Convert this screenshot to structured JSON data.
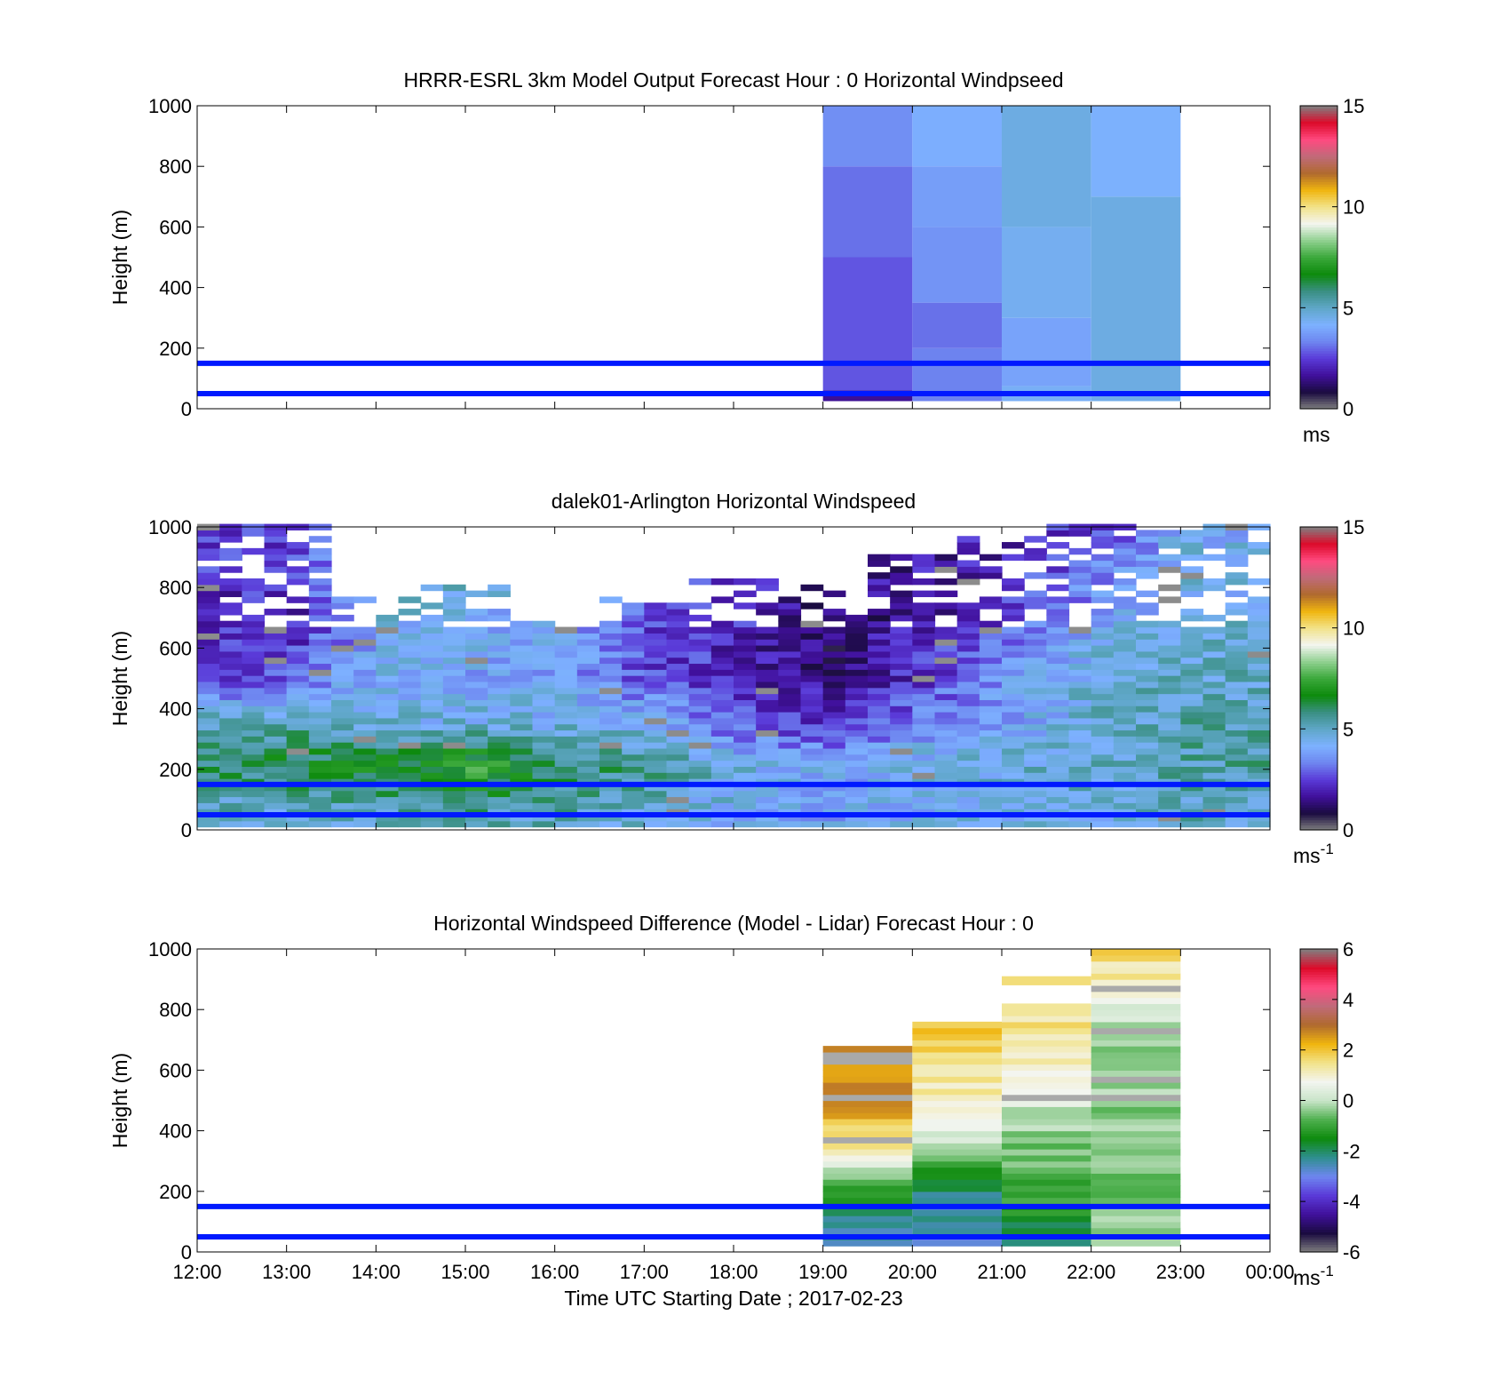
{
  "colors": {
    "ref_line": "#0019ff",
    "frame": "#000000",
    "speed_stops": [
      "#808080",
      "#1a0b40",
      "#40109b",
      "#5a3ad8",
      "#6e86f0",
      "#7db1ff",
      "#5fa7c8",
      "#3a8f83",
      "#0d8a0d",
      "#3aa83a",
      "#8fd08f",
      "#f3f5f0",
      "#f2e38a",
      "#f0b50f",
      "#b06a2e",
      "#c06a7a",
      "#ff4a80",
      "#dd0a2a",
      "#808080"
    ],
    "diff_stops": [
      "#808080",
      "#1a0b40",
      "#40109b",
      "#5a3ad8",
      "#6e86f0",
      "#2f8f8f",
      "#0d8a0d",
      "#4fb04f",
      "#c8e4c8",
      "#f3f5f0",
      "#f2e38a",
      "#f0b50f",
      "#b06a2e",
      "#c06a7a",
      "#ff4a80",
      "#dd0a2a",
      "#808080"
    ]
  },
  "chart_data": [
    {
      "type": "heatmap",
      "title": "HRRR-ESRL 3km Model Output   Forecast Hour : 0 Horizontal Windpseed",
      "ylabel": "Height (m)",
      "ylim": [
        0,
        1000
      ],
      "yticks": [
        "0",
        "200",
        "400",
        "600",
        "800",
        "1000"
      ],
      "xlim_hours": [
        12,
        24
      ],
      "show_xticklabels": false,
      "colorbar": {
        "min": 0,
        "max": 15,
        "ticks": [
          "0",
          "5",
          "10",
          "15"
        ],
        "unit": "ms",
        "unit_sup": ""
      },
      "reference_lines_m": [
        50,
        150
      ],
      "cells": [
        {
          "x0": 19,
          "x1": 20,
          "y0": 25,
          "y1": 60,
          "v": 1.6
        },
        {
          "x0": 19,
          "x1": 20,
          "y0": 60,
          "y1": 500,
          "v": 2.8
        },
        {
          "x0": 19,
          "x1": 20,
          "y0": 500,
          "y1": 800,
          "v": 3.1
        },
        {
          "x0": 19,
          "x1": 20,
          "y0": 800,
          "y1": 1000,
          "v": 3.5
        },
        {
          "x0": 20,
          "x1": 21,
          "y0": 25,
          "y1": 200,
          "v": 3.3
        },
        {
          "x0": 20,
          "x1": 21,
          "y0": 200,
          "y1": 350,
          "v": 3.1
        },
        {
          "x0": 20,
          "x1": 21,
          "y0": 350,
          "y1": 600,
          "v": 3.6
        },
        {
          "x0": 20,
          "x1": 21,
          "y0": 600,
          "y1": 800,
          "v": 3.8
        },
        {
          "x0": 20,
          "x1": 21,
          "y0": 800,
          "y1": 1000,
          "v": 4.1
        },
        {
          "x0": 21,
          "x1": 22,
          "y0": 25,
          "y1": 75,
          "v": 4.3
        },
        {
          "x0": 21,
          "x1": 22,
          "y0": 75,
          "y1": 300,
          "v": 3.9
        },
        {
          "x0": 21,
          "x1": 22,
          "y0": 300,
          "y1": 600,
          "v": 4.4
        },
        {
          "x0": 21,
          "x1": 22,
          "y0": 600,
          "y1": 1000,
          "v": 4.6
        },
        {
          "x0": 22,
          "x1": 23,
          "y0": 25,
          "y1": 60,
          "v": 4.5
        },
        {
          "x0": 22,
          "x1": 23,
          "y0": 60,
          "y1": 700,
          "v": 4.6
        },
        {
          "x0": 22,
          "x1": 23,
          "y0": 700,
          "y1": 1000,
          "v": 4.2
        }
      ]
    },
    {
      "type": "heatmap",
      "title": "dalek01-Arlington  Horizontal Windspeed",
      "ylabel": "Height (m)",
      "ylim": [
        0,
        1000
      ],
      "yticks": [
        "0",
        "200",
        "400",
        "600",
        "800",
        "1000"
      ],
      "xlim_hours": [
        12,
        24
      ],
      "show_xticklabels": false,
      "colorbar": {
        "min": 0,
        "max": 15,
        "ticks": [
          "0",
          "5",
          "10",
          "15"
        ],
        "unit": "ms",
        "unit_sup": "-1"
      },
      "reference_lines_m": [
        50,
        150
      ],
      "time_bin_hours": 0.25,
      "height_bin_m": 20,
      "time_range_hours": [
        12,
        23.85
      ],
      "profile_heights_m": [
        20,
        200,
        350,
        500,
        700,
        900,
        1000
      ],
      "profile_hours": [
        12,
        13,
        14,
        15,
        16,
        17,
        18,
        19,
        20,
        21,
        22,
        23
      ],
      "profiles": [
        [
          4.8,
          6.0,
          5.0,
          2.3,
          2.0,
          2.4,
          2.7
        ],
        [
          4.5,
          6.4,
          5.2,
          2.8,
          2.2,
          2.6,
          2.6
        ],
        [
          5.0,
          6.6,
          4.6,
          4.2,
          4.5,
          5.0,
          5.0
        ],
        [
          5.2,
          7.3,
          4.6,
          4.0,
          4.3,
          5.0,
          5.0
        ],
        [
          5.0,
          6.2,
          4.4,
          4.0,
          4.0,
          4.4,
          4.4
        ],
        [
          4.5,
          5.6,
          4.2,
          2.6,
          2.5,
          3.0,
          3.4
        ],
        [
          4.2,
          4.5,
          2.6,
          2.0,
          2.2,
          2.5,
          2.6
        ],
        [
          4.0,
          4.0,
          2.2,
          1.4,
          1.3,
          1.6,
          1.8
        ],
        [
          4.2,
          4.6,
          3.4,
          2.4,
          1.8,
          1.8,
          1.8
        ],
        [
          4.4,
          4.8,
          3.9,
          3.8,
          2.6,
          2.0,
          2.0
        ],
        [
          4.5,
          5.0,
          4.8,
          4.7,
          4.0,
          3.0,
          2.5
        ],
        [
          5.0,
          5.4,
          5.2,
          5.0,
          4.6,
          4.4,
          4.2
        ]
      ],
      "valid_top_m": [
        1000,
        1000,
        760,
        790,
        680,
        760,
        820,
        800,
        900,
        960,
        1000,
        1000
      ]
    },
    {
      "type": "heatmap",
      "title": "Horizontal Windspeed Difference (Model - Lidar) Forecast Hour : 0",
      "ylabel": "Height (m)",
      "xlabel": "Time UTC  Starting Date ; 2017-02-23",
      "ylim": [
        0,
        1000
      ],
      "yticks": [
        "0",
        "200",
        "400",
        "600",
        "800",
        "1000"
      ],
      "xlim_hours": [
        12,
        24
      ],
      "show_xticklabels": true,
      "xticks": [
        "12:00",
        "13:00",
        "14:00",
        "15:00",
        "16:00",
        "17:00",
        "18:00",
        "19:00",
        "20:00",
        "21:00",
        "22:00",
        "23:00",
        "00:00"
      ],
      "colorbar": {
        "min": -6,
        "max": 6,
        "ticks": [
          "-6",
          "-4",
          "-2",
          "0",
          "2",
          "4",
          "6"
        ],
        "unit": "ms",
        "unit_sup": "-1"
      },
      "reference_lines_m": [
        50,
        150
      ],
      "height_bin_m": 20,
      "columns": [
        {
          "x0": 19,
          "x1": 20,
          "top_m": 680,
          "profile_heights_m": [
            20,
            150,
            250,
            350,
            500,
            680
          ],
          "profile_values": [
            -2.6,
            -1.8,
            -0.2,
            1.5,
            2.6,
            2.7
          ]
        },
        {
          "x0": 20,
          "x1": 21,
          "top_m": 760,
          "profile_heights_m": [
            20,
            150,
            250,
            350,
            500,
            760
          ],
          "profile_values": [
            -2.7,
            -2.4,
            -1.2,
            0.2,
            1.2,
            2.0
          ]
        },
        {
          "x0": 21,
          "x1": 22,
          "top_m": 820,
          "profile_heights_m": [
            20,
            150,
            300,
            450,
            600,
            820
          ],
          "profile_values": [
            -2.0,
            -1.2,
            -0.6,
            0.0,
            1.0,
            1.6
          ]
        },
        {
          "x0": 22,
          "x1": 23,
          "top_m": 1000,
          "profile_heights_m": [
            20,
            150,
            300,
            500,
            700,
            850,
            1000
          ],
          "profile_values": [
            -0.4,
            -0.5,
            -0.3,
            -0.4,
            -0.5,
            1.0,
            1.7
          ]
        }
      ],
      "extra_cells": [
        {
          "x0": 21,
          "x1": 22,
          "y0": 880,
          "y1": 910,
          "v": 1.6
        }
      ]
    }
  ]
}
